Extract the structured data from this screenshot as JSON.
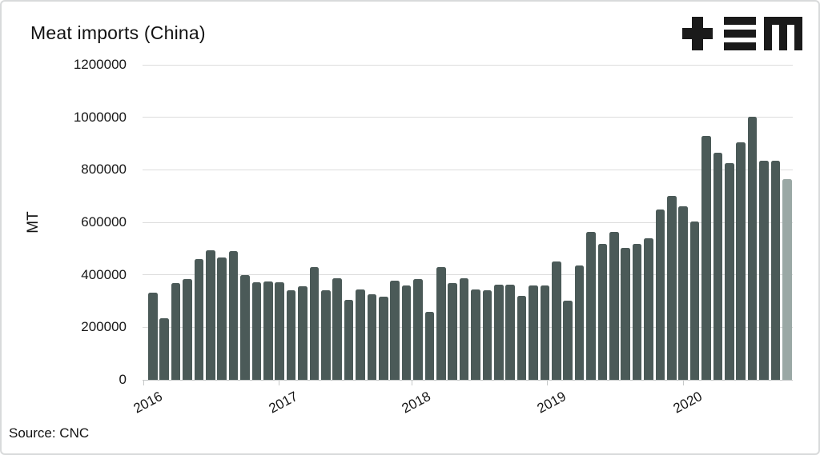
{
  "header": {
    "title": "Meat imports (China)",
    "logo_icon": "tem-monogram-icon"
  },
  "source": {
    "label": "Source: CNC"
  },
  "chart_data": {
    "type": "bar",
    "title": "Meat imports (China)",
    "xlabel": "",
    "ylabel": "MT",
    "ylim": [
      0,
      1200000
    ],
    "y_ticks": [
      0,
      200000,
      400000,
      600000,
      800000,
      1000000,
      1200000
    ],
    "x_tick_labels": [
      "2016",
      "2017",
      "2018",
      "2019",
      "2020"
    ],
    "grid": "horizontal",
    "legend": "none",
    "bar_color": "#4b5a58",
    "highlight_last": true,
    "highlight_color": "#9aa8a5",
    "source_text": "Source: CNC",
    "series_note": "monthly values Jan 2016 onward, last month highlighted",
    "values": [
      332000,
      236000,
      370000,
      385000,
      459000,
      492000,
      465000,
      490000,
      398000,
      371000,
      374000,
      371000,
      342000,
      355000,
      431000,
      342000,
      386000,
      305000,
      345000,
      327000,
      318000,
      378000,
      358000,
      383000,
      259000,
      431000,
      368000,
      388000,
      343000,
      341000,
      362000,
      362000,
      320000,
      359000,
      359000,
      450000,
      301000,
      437000,
      562000,
      518000,
      565000,
      502000,
      517000,
      540000,
      648000,
      700000,
      662000,
      602000,
      928000,
      866000,
      825000,
      906000,
      1003000,
      835000,
      835000,
      763000
    ]
  }
}
